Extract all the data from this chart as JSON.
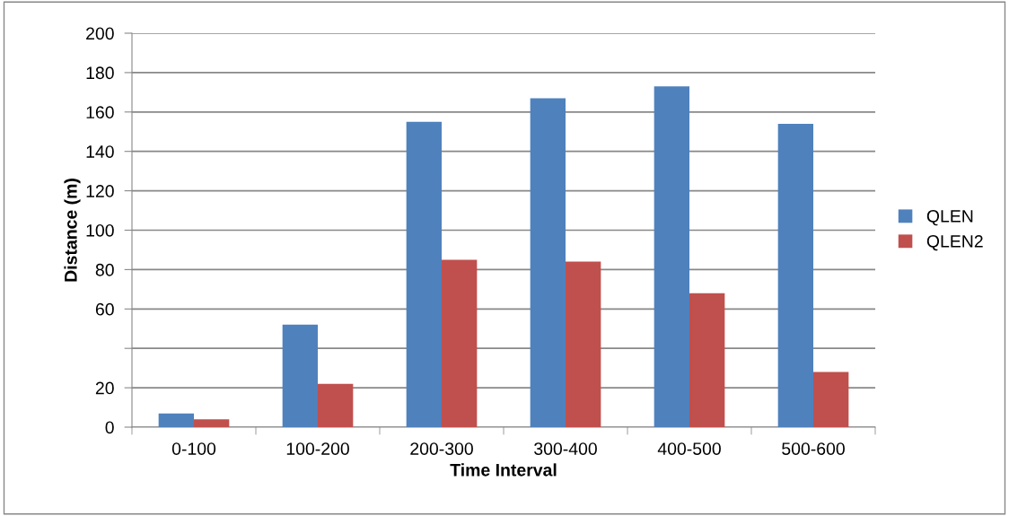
{
  "chart_data": {
    "type": "bar",
    "xlabel": "Time Interval",
    "ylabel": "Distance (m)",
    "categories": [
      "0-100",
      "100-200",
      "200-300",
      "300-400",
      "400-500",
      "500-600"
    ],
    "series": [
      {
        "name": "QLEN",
        "color": "#4f81bd",
        "values": [
          7,
          52,
          155,
          167,
          173,
          154
        ]
      },
      {
        "name": "QLEN2",
        "color": "#c0504d",
        "values": [
          4,
          22,
          85,
          84,
          68,
          28
        ]
      }
    ],
    "ylim": [
      0,
      200
    ],
    "yticks": [
      0,
      20,
      {
        "value": 40,
        "label": null
      },
      60,
      80,
      100,
      120,
      140,
      160,
      180,
      200
    ],
    "grid": "y",
    "legend": "right"
  }
}
